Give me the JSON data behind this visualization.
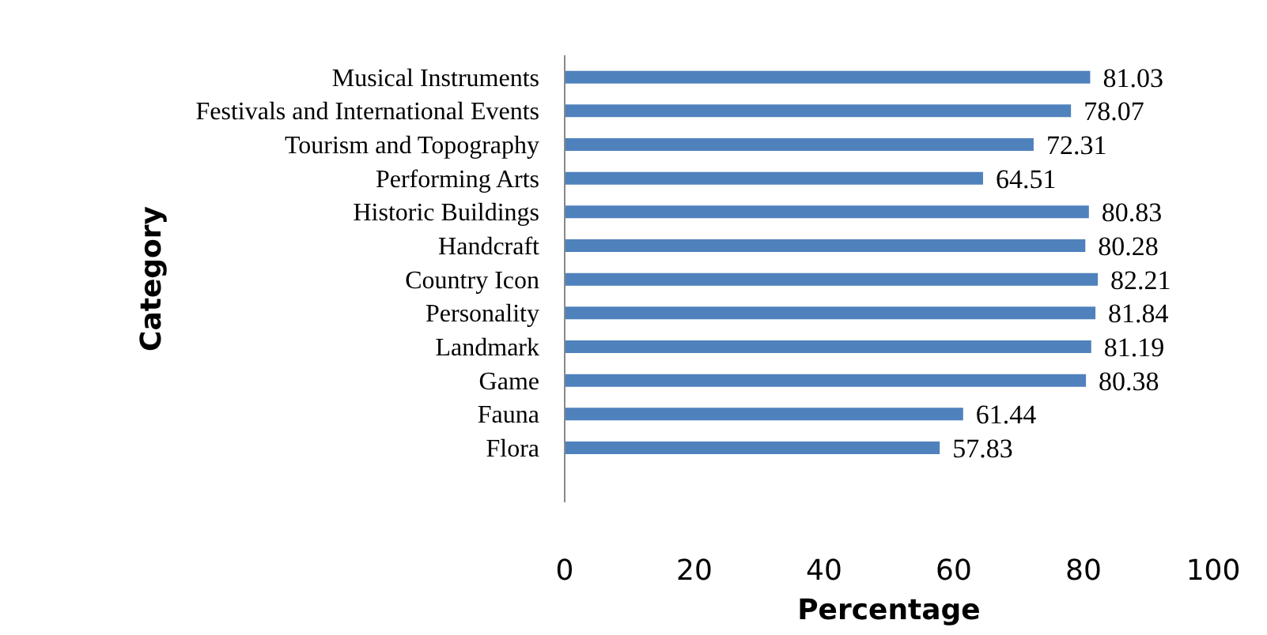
{
  "chart_data": {
    "type": "bar",
    "orientation": "horizontal",
    "xlabel": "Percentage",
    "ylabel": "Category",
    "categories": [
      "Musical Instruments",
      "Festivals  and International Events",
      "Tourism and Topography",
      "Performing Arts",
      "Historic Buildings",
      "Handcraft",
      "Country Icon",
      "Personality",
      "Landmark",
      "Game",
      "Fauna",
      "Flora"
    ],
    "values": [
      81.03,
      78.07,
      72.31,
      64.51,
      80.83,
      80.28,
      82.21,
      81.84,
      81.19,
      80.38,
      61.44,
      57.83
    ],
    "color": "#4f81bd",
    "xlim": [
      0,
      100
    ],
    "xticks": [
      0,
      20,
      40,
      60,
      80,
      100
    ],
    "data_labels": true
  }
}
